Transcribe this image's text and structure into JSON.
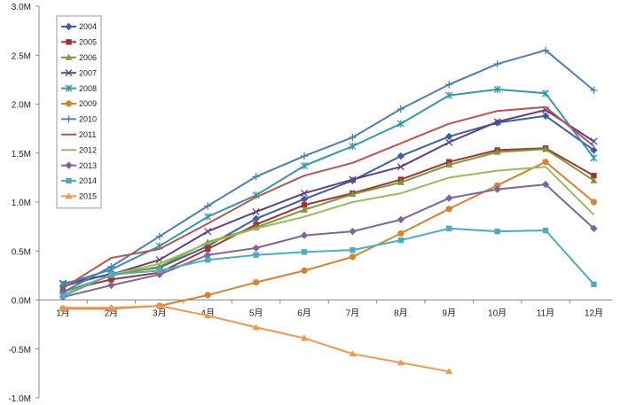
{
  "chart_data": {
    "type": "line",
    "title": "",
    "xlabel": "",
    "ylabel": "",
    "categories": [
      "1月",
      "2月",
      "3月",
      "4月",
      "5月",
      "6月",
      "7月",
      "8月",
      "9月",
      "10月",
      "11月",
      "12月"
    ],
    "ylim": [
      -1.0,
      3.0
    ],
    "yticks": [
      {
        "value": 3.0,
        "label": "3.0M"
      },
      {
        "value": 2.5,
        "label": "2.5M"
      },
      {
        "value": 2.0,
        "label": "2.0M"
      },
      {
        "value": 1.5,
        "label": "1.5M"
      },
      {
        "value": 1.0,
        "label": "1.0M"
      },
      {
        "value": 0.5,
        "label": "0.5M"
      },
      {
        "value": 0.0,
        "label": "0.0M"
      },
      {
        "value": -0.5,
        "label": "-0.5M"
      },
      {
        "value": -1.0,
        "label": "-1.0M"
      }
    ],
    "grid": false,
    "legend_position": "top-left",
    "series": [
      {
        "name": "2004",
        "color": "#3A5FA5",
        "marker": "diamond",
        "values": [
          0.14,
          0.27,
          0.33,
          0.55,
          0.83,
          1.03,
          1.22,
          1.47,
          1.67,
          1.81,
          1.88,
          1.53
        ]
      },
      {
        "name": "2005",
        "color": "#A8312F",
        "marker": "square",
        "values": [
          0.09,
          0.21,
          0.28,
          0.52,
          0.77,
          0.97,
          1.09,
          1.23,
          1.41,
          1.53,
          1.55,
          1.27
        ]
      },
      {
        "name": "2006",
        "color": "#7A9A3A",
        "marker": "triangle",
        "values": [
          0.08,
          0.25,
          0.34,
          0.59,
          0.74,
          0.92,
          1.08,
          1.2,
          1.38,
          1.51,
          1.54,
          1.22
        ]
      },
      {
        "name": "2007",
        "color": "#5E3F88",
        "marker": "x",
        "values": [
          0.17,
          0.26,
          0.41,
          0.7,
          0.9,
          1.09,
          1.23,
          1.36,
          1.61,
          1.82,
          1.94,
          1.62
        ]
      },
      {
        "name": "2008",
        "color": "#3198A8",
        "marker": "star",
        "values": [
          0.16,
          0.31,
          0.55,
          0.85,
          1.07,
          1.37,
          1.57,
          1.8,
          2.09,
          2.15,
          2.11,
          1.45
        ]
      },
      {
        "name": "2009",
        "color": "#D9822B",
        "marker": "circle",
        "values": [
          -0.09,
          -0.09,
          -0.06,
          0.05,
          0.18,
          0.3,
          0.44,
          0.68,
          0.93,
          1.17,
          1.41,
          1.0
        ]
      },
      {
        "name": "2010",
        "color": "#4A7EBB",
        "marker": "plus",
        "values": [
          0.08,
          0.34,
          0.65,
          0.96,
          1.26,
          1.47,
          1.66,
          1.95,
          2.2,
          2.41,
          2.55,
          2.14
        ]
      },
      {
        "name": "2011",
        "color": "#C0504D",
        "marker": "none",
        "values": [
          0.12,
          0.43,
          0.52,
          0.78,
          1.05,
          1.27,
          1.4,
          1.6,
          1.8,
          1.93,
          1.97,
          1.57
        ]
      },
      {
        "name": "2012",
        "color": "#9BBB59",
        "marker": "none",
        "values": [
          0.05,
          0.26,
          0.37,
          0.58,
          0.73,
          0.85,
          1.0,
          1.09,
          1.25,
          1.32,
          1.36,
          0.87
        ]
      },
      {
        "name": "2013",
        "color": "#8064A2",
        "marker": "diamond",
        "values": [
          0.03,
          0.15,
          0.26,
          0.46,
          0.53,
          0.66,
          0.7,
          0.82,
          1.04,
          1.13,
          1.18,
          0.73
        ]
      },
      {
        "name": "2014",
        "color": "#4BACC6",
        "marker": "square",
        "values": [
          0.04,
          0.26,
          0.3,
          0.41,
          0.46,
          0.49,
          0.51,
          0.61,
          0.73,
          0.7,
          0.71,
          0.16
        ]
      },
      {
        "name": "2015",
        "color": "#F79646",
        "marker": "triangle",
        "values": [
          -0.08,
          -0.08,
          -0.06,
          -0.16,
          -0.28,
          -0.39,
          -0.55,
          -0.64,
          -0.73,
          null,
          null,
          null
        ]
      }
    ]
  }
}
